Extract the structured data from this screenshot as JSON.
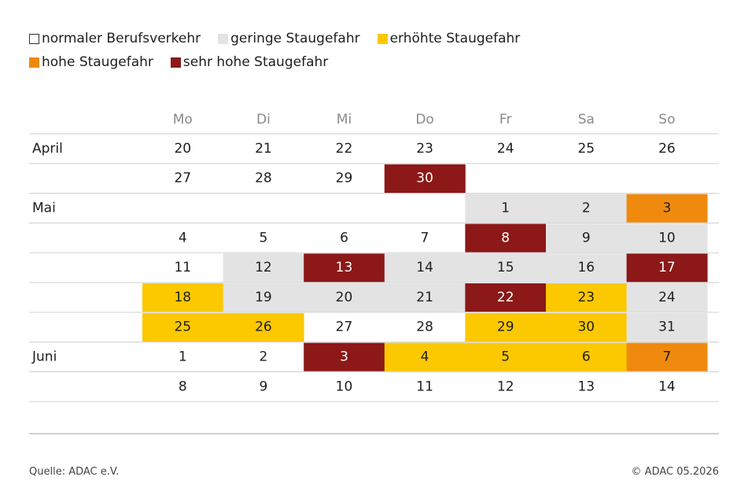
{
  "legend": [
    {
      "label": "normaler Berufsverkehr",
      "color": "#ffffff",
      "key": "normal"
    },
    {
      "label": "geringe Staugefahr",
      "color": "#e3e3e3",
      "key": "low"
    },
    {
      "label": "erhöhte Staugefahr",
      "color": "#fcc800",
      "key": "elevated"
    },
    {
      "label": "hohe Staugefahr",
      "color": "#ef8a0e",
      "key": "high"
    },
    {
      "label": "sehr hohe Staugefahr",
      "color": "#8c1818",
      "key": "very_high"
    }
  ],
  "chart_data": {
    "type": "table",
    "columns": [
      "Mo",
      "Di",
      "Mi",
      "Do",
      "Fr",
      "Sa",
      "So"
    ],
    "rows": [
      {
        "month": "April",
        "cells": [
          {
            "day": "20",
            "level": "normal"
          },
          {
            "day": "21",
            "level": "normal"
          },
          {
            "day": "22",
            "level": "normal"
          },
          {
            "day": "23",
            "level": "normal"
          },
          {
            "day": "24",
            "level": "normal"
          },
          {
            "day": "25",
            "level": "normal"
          },
          {
            "day": "26",
            "level": "normal"
          }
        ]
      },
      {
        "month": "",
        "cells": [
          {
            "day": "27",
            "level": "normal"
          },
          {
            "day": "28",
            "level": "normal"
          },
          {
            "day": "29",
            "level": "normal"
          },
          {
            "day": "30",
            "level": "very_high"
          },
          null,
          null,
          null
        ]
      },
      {
        "month": "Mai",
        "cells": [
          null,
          null,
          null,
          null,
          {
            "day": "1",
            "level": "low"
          },
          {
            "day": "2",
            "level": "low"
          },
          {
            "day": "3",
            "level": "high"
          }
        ]
      },
      {
        "month": "",
        "cells": [
          {
            "day": "4",
            "level": "normal"
          },
          {
            "day": "5",
            "level": "normal"
          },
          {
            "day": "6",
            "level": "normal"
          },
          {
            "day": "7",
            "level": "normal"
          },
          {
            "day": "8",
            "level": "very_high"
          },
          {
            "day": "9",
            "level": "low"
          },
          {
            "day": "10",
            "level": "low"
          }
        ]
      },
      {
        "month": "",
        "cells": [
          {
            "day": "11",
            "level": "normal"
          },
          {
            "day": "12",
            "level": "low"
          },
          {
            "day": "13",
            "level": "very_high"
          },
          {
            "day": "14",
            "level": "low"
          },
          {
            "day": "15",
            "level": "low"
          },
          {
            "day": "16",
            "level": "low"
          },
          {
            "day": "17",
            "level": "very_high"
          }
        ]
      },
      {
        "month": "",
        "cells": [
          {
            "day": "18",
            "level": "elevated"
          },
          {
            "day": "19",
            "level": "low"
          },
          {
            "day": "20",
            "level": "low"
          },
          {
            "day": "21",
            "level": "low"
          },
          {
            "day": "22",
            "level": "very_high"
          },
          {
            "day": "23",
            "level": "elevated"
          },
          {
            "day": "24",
            "level": "low"
          }
        ]
      },
      {
        "month": "",
        "cells": [
          {
            "day": "25",
            "level": "elevated"
          },
          {
            "day": "26",
            "level": "elevated"
          },
          {
            "day": "27",
            "level": "normal"
          },
          {
            "day": "28",
            "level": "normal"
          },
          {
            "day": "29",
            "level": "elevated"
          },
          {
            "day": "30",
            "level": "elevated"
          },
          {
            "day": "31",
            "level": "low"
          }
        ]
      },
      {
        "month": "Juni",
        "cells": [
          {
            "day": "1",
            "level": "normal"
          },
          {
            "day": "2",
            "level": "normal"
          },
          {
            "day": "3",
            "level": "very_high"
          },
          {
            "day": "4",
            "level": "elevated"
          },
          {
            "day": "5",
            "level": "elevated"
          },
          {
            "day": "6",
            "level": "elevated"
          },
          {
            "day": "7",
            "level": "high"
          }
        ]
      },
      {
        "month": "",
        "cells": [
          {
            "day": "8",
            "level": "normal"
          },
          {
            "day": "9",
            "level": "normal"
          },
          {
            "day": "10",
            "level": "normal"
          },
          {
            "day": "11",
            "level": "normal"
          },
          {
            "day": "12",
            "level": "normal"
          },
          {
            "day": "13",
            "level": "normal"
          },
          {
            "day": "14",
            "level": "normal"
          }
        ]
      }
    ]
  },
  "footer": {
    "source": "Quelle: ADAC e.V.",
    "copyright": "© ADAC 05.2026"
  }
}
